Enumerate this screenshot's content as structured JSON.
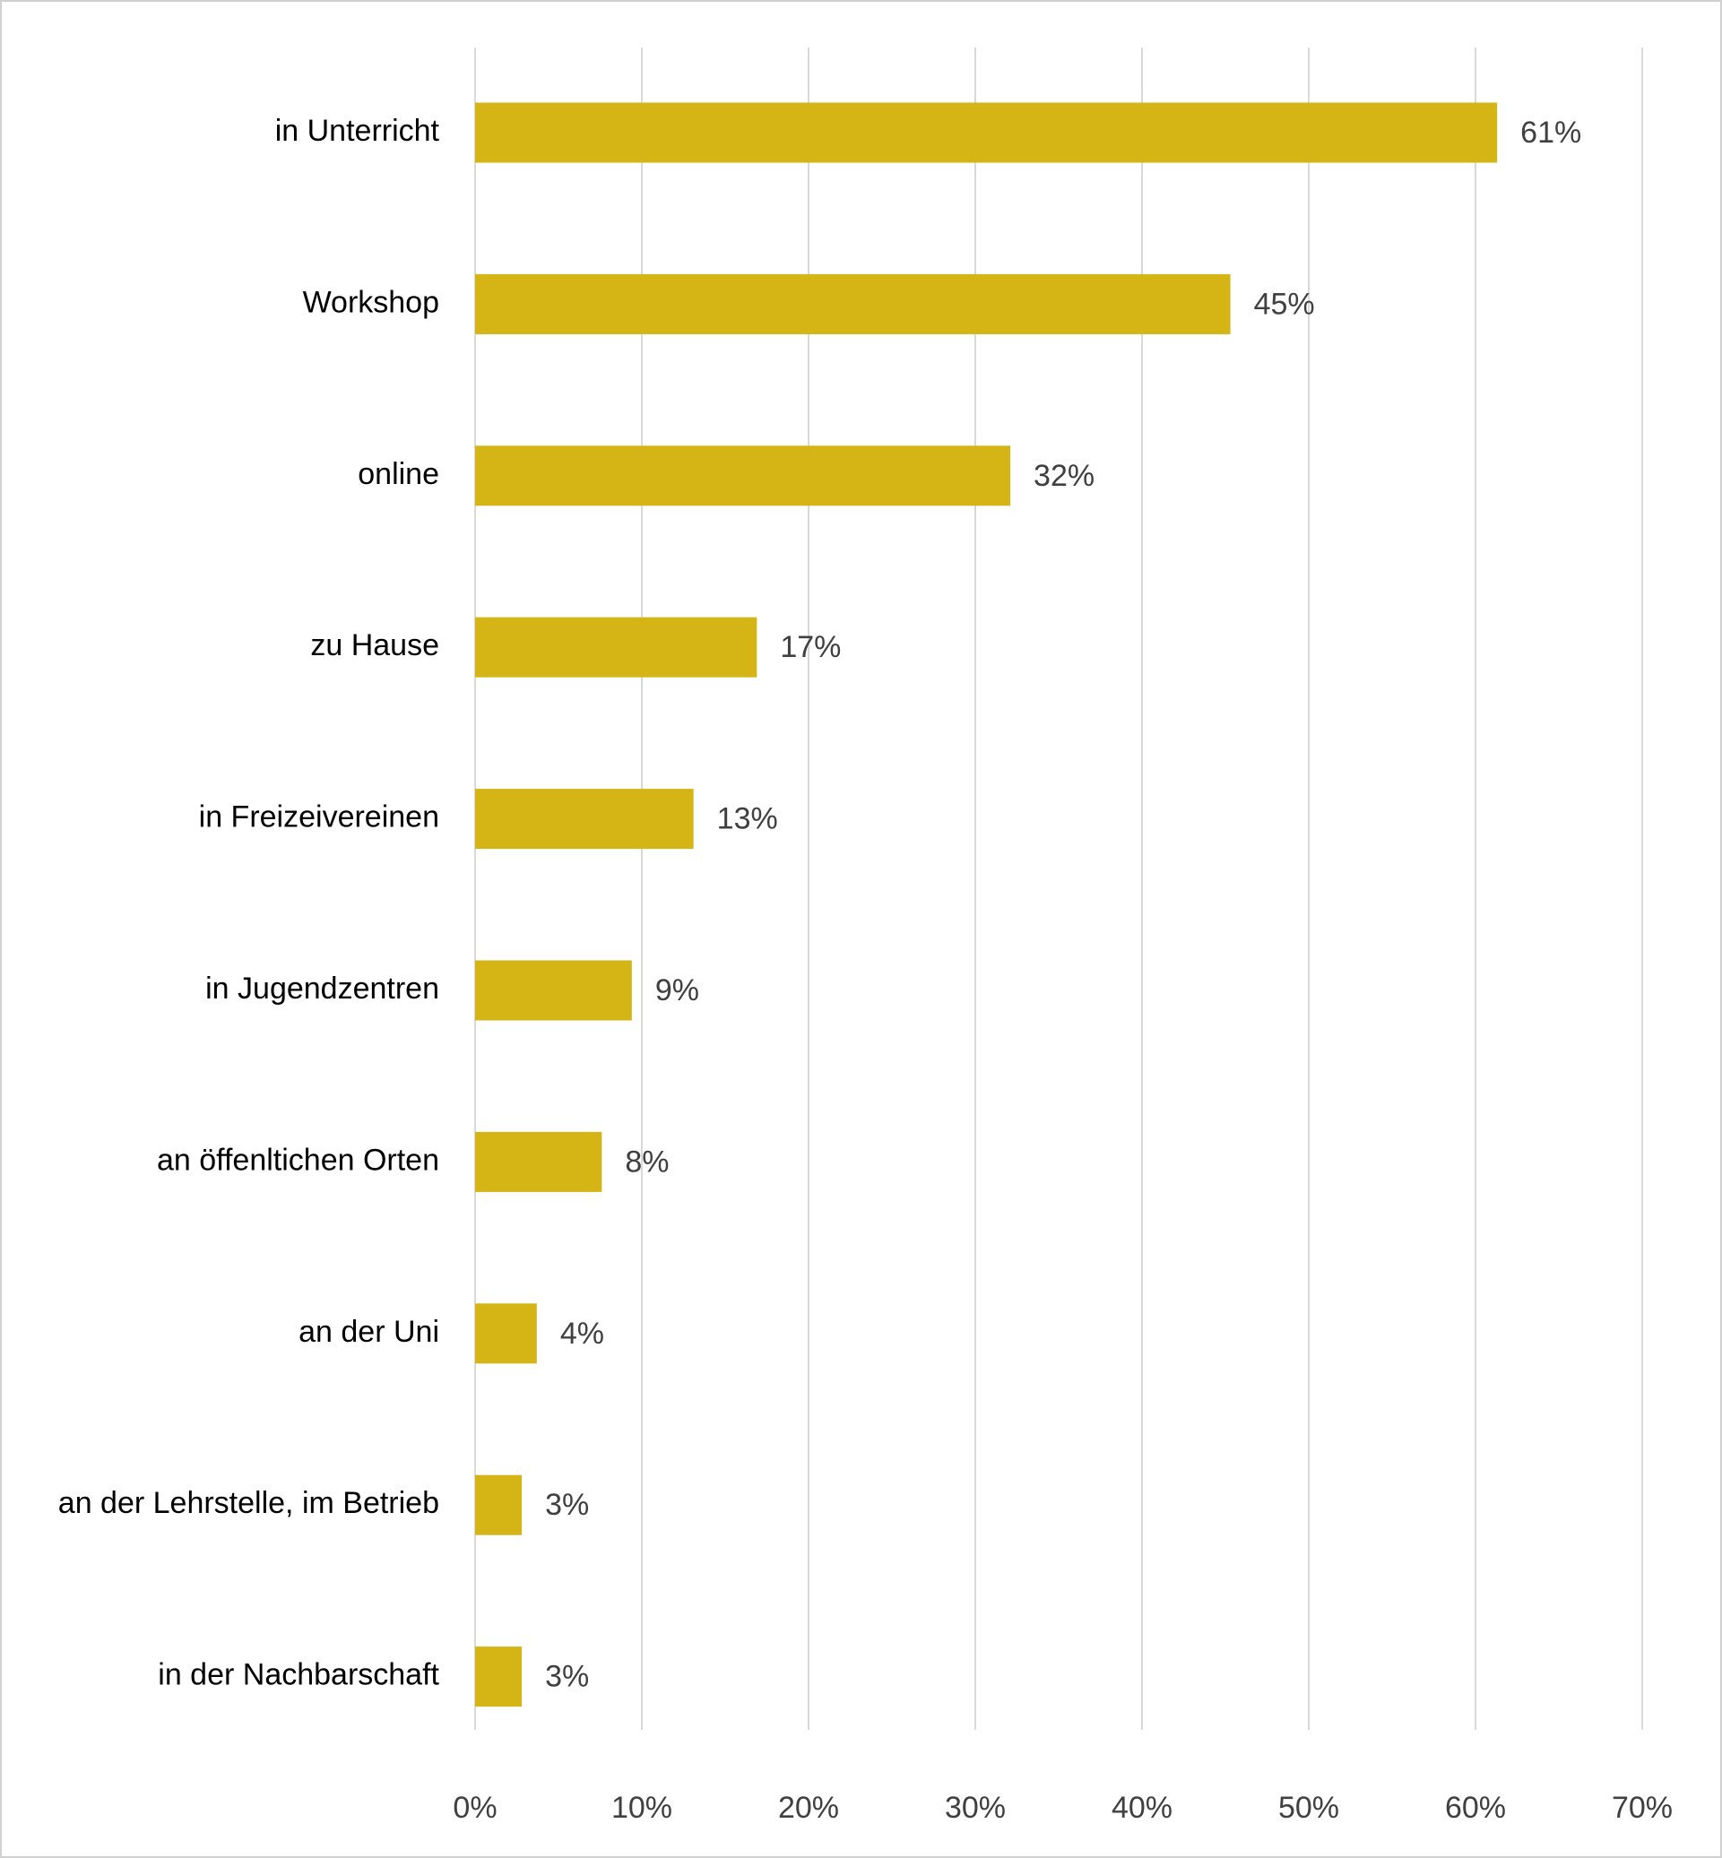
{
  "chart_data": {
    "type": "bar",
    "orientation": "horizontal",
    "categories": [
      "in Unterricht",
      "Workshop",
      "online",
      "zu Hause",
      "in Freizeivereinen",
      "in Jugendzentren",
      "an öffenltichen Orten",
      "an der Uni",
      "an der Lehrstelle, im Betrieb",
      "in der Nachbarschaft"
    ],
    "values": [
      61.3,
      45.3,
      32.1,
      16.9,
      13.1,
      9.4,
      7.6,
      3.7,
      2.8,
      2.8
    ],
    "value_labels": [
      "61%",
      "45%",
      "32%",
      "17%",
      "13%",
      "9%",
      "8%",
      "4%",
      "3%",
      "3%"
    ],
    "color": "#d5b416",
    "xlim": [
      0,
      70
    ],
    "xticks": [
      {
        "value": 0,
        "label": "0%"
      },
      {
        "value": 10,
        "label": "10%"
      },
      {
        "value": 20,
        "label": "20%"
      },
      {
        "value": 30,
        "label": "30%"
      },
      {
        "value": 40,
        "label": "40%"
      },
      {
        "value": 50,
        "label": "50%"
      },
      {
        "value": 60,
        "label": "60%"
      },
      {
        "value": 70,
        "label": "70%"
      }
    ],
    "grid": true
  }
}
